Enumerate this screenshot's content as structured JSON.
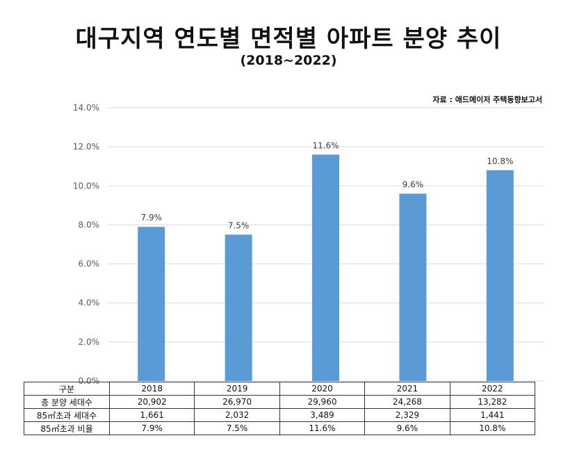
{
  "title": "대구지역 연도별 면적별 아파트 분양 추이",
  "subtitle": "(2018~2022)",
  "source": "자료 : 애드메이저 주택동향보고서",
  "colors": {
    "bar": "#5b9bd5",
    "grid": "#d9d9d9",
    "axis_text": "#595959"
  },
  "chart_data": {
    "type": "bar",
    "categories": [
      "2018",
      "2019",
      "2020",
      "2021",
      "2022"
    ],
    "values": [
      7.9,
      7.5,
      11.6,
      9.6,
      10.8
    ],
    "value_labels": [
      "7.9%",
      "7.5%",
      "11.6%",
      "9.6%",
      "10.8%"
    ],
    "ylim": [
      0,
      14
    ],
    "yticks": [
      "0.0%",
      "2.0%",
      "4.0%",
      "6.0%",
      "8.0%",
      "10.0%",
      "12.0%",
      "14.0%"
    ],
    "grid": true,
    "legend": "none"
  },
  "table": {
    "header": [
      "구분",
      "2018",
      "2019",
      "2020",
      "2021",
      "2022"
    ],
    "rows": [
      [
        "총 분양 세대수",
        "20,902",
        "26,970",
        "29,960",
        "24,268",
        "13,282"
      ],
      [
        "85㎡초과 세대수",
        "1,661",
        "2,032",
        "3,489",
        "2,329",
        "1,441"
      ],
      [
        "85㎡초과 비율",
        "7.9%",
        "7.5%",
        "11.6%",
        "9.6%",
        "10.8%"
      ]
    ]
  }
}
